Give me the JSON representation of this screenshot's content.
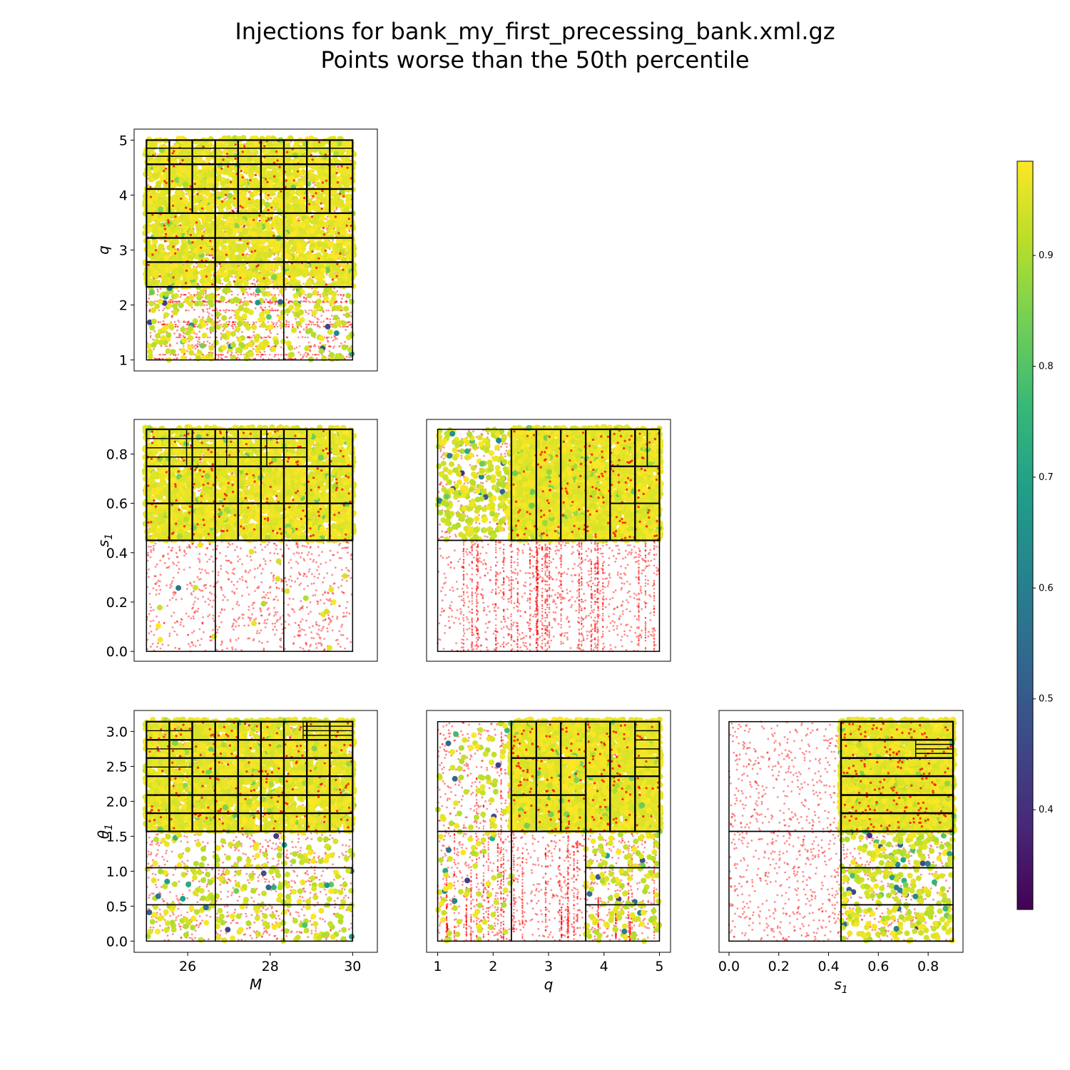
{
  "title": {
    "line1": "Injections for bank_my_first_precessing_bank.xml.gz",
    "line2": "Points worse than the 50th percentile"
  },
  "chart_data": [
    {
      "type": "scatter",
      "panel": "M-q",
      "xlabel": "",
      "ylabel": "q",
      "xlim": [
        24.7,
        30.6
      ],
      "ylim": [
        0.8,
        5.2
      ],
      "xticks": [],
      "yticks": [
        1,
        2,
        3,
        4,
        5
      ],
      "grid": false,
      "tiles_x_edges": [
        25,
        26.67,
        28.33,
        30
      ],
      "tiles_y_edges": [
        1,
        2.33,
        2.78,
        3.22,
        3.67,
        4.11,
        4.56,
        5
      ],
      "worse_point_color": "#ff0000",
      "colored_points_note": "match values from colorbar"
    },
    {
      "type": "scatter",
      "panel": "M-s1",
      "xlabel": "",
      "ylabel": "s_1",
      "xlim": [
        24.7,
        30.6
      ],
      "ylim": [
        -0.04,
        0.94
      ],
      "xticks": [],
      "yticks": [
        0.0,
        0.2,
        0.4,
        0.6,
        0.8
      ],
      "grid": false,
      "tiles_y_edges": [
        0,
        0.45,
        0.6,
        0.75,
        0.9
      ]
    },
    {
      "type": "scatter",
      "panel": "q-s1",
      "xlabel": "",
      "ylabel": "",
      "xlim": [
        0.8,
        5.2
      ],
      "ylim": [
        -0.04,
        0.94
      ],
      "xticks": [],
      "yticks": [],
      "grid": false,
      "tiles_x_edges": [
        1,
        2.33,
        3.67,
        5
      ],
      "tiles_y_edges": [
        0,
        0.45,
        0.9
      ]
    },
    {
      "type": "scatter",
      "panel": "M-theta1",
      "xlabel": "M",
      "ylabel": "θ_1",
      "xlim": [
        24.7,
        30.6
      ],
      "ylim": [
        -0.16,
        3.3
      ],
      "xticks": [
        26,
        28,
        30
      ],
      "yticks": [
        0.0,
        0.5,
        1.0,
        1.5,
        2.0,
        2.5,
        3.0
      ],
      "grid": false,
      "tiles_y_edges": [
        0,
        0.52,
        1.05,
        1.57,
        2.09,
        2.62,
        3.14
      ]
    },
    {
      "type": "scatter",
      "panel": "q-theta1",
      "xlabel": "q",
      "ylabel": "",
      "xlim": [
        0.8,
        5.2
      ],
      "ylim": [
        -0.16,
        3.3
      ],
      "xticks": [
        1,
        2,
        3,
        4,
        5
      ],
      "yticks": [],
      "grid": false
    },
    {
      "type": "scatter",
      "panel": "s1-theta1",
      "xlabel": "s_1",
      "ylabel": "",
      "xlim": [
        -0.04,
        0.94
      ],
      "ylim": [
        -0.16,
        3.3
      ],
      "xticks": [
        0.0,
        0.2,
        0.4,
        0.6,
        0.8
      ],
      "yticks": [],
      "grid": false
    }
  ],
  "colorbar": {
    "colormap": "viridis",
    "range": [
      0.31,
      0.985
    ],
    "ticks": [
      0.4,
      0.5,
      0.6,
      0.7,
      0.8,
      0.9
    ]
  },
  "colors": {
    "viridis": [
      "#440154",
      "#482878",
      "#3e4989",
      "#31688e",
      "#26828e",
      "#1f9e89",
      "#35b779",
      "#6ece58",
      "#b5de2b",
      "#fde725"
    ],
    "worse": "#ff0000",
    "tiles": "#000000"
  }
}
